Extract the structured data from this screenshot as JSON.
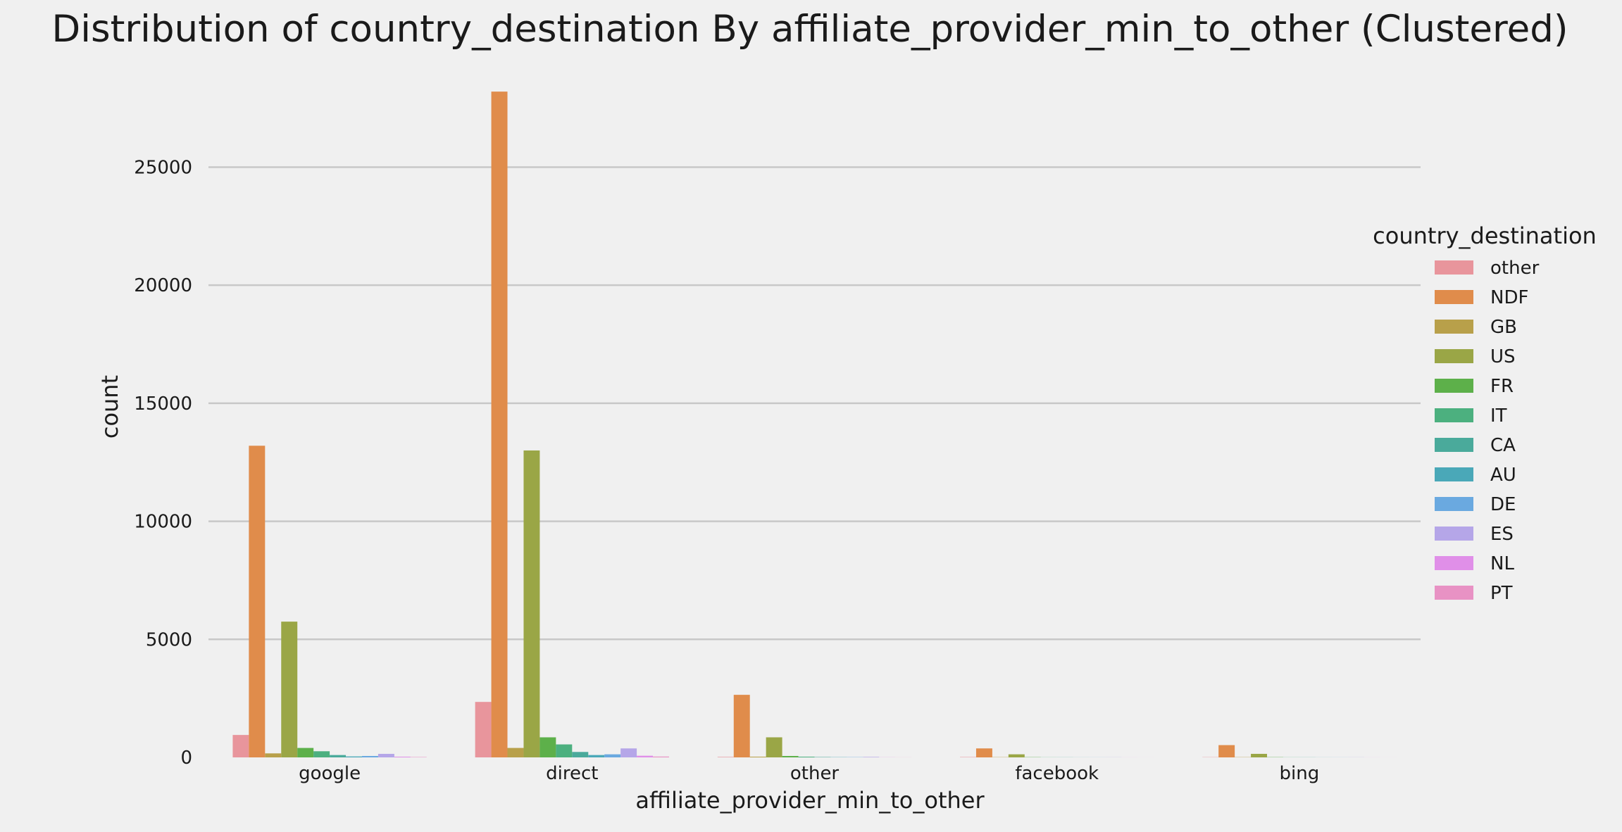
{
  "chart_data": {
    "type": "bar",
    "title": "Distribution of country_destination By affiliate_provider_min_to_other (Clustered)",
    "xlabel": "affiliate_provider_min_to_other",
    "ylabel": "count",
    "ylim": [
      0,
      28800
    ],
    "yticks": [
      "0",
      "5000",
      "10000",
      "15000",
      "20000",
      "25000"
    ],
    "ytick_values": [
      0,
      5000,
      10000,
      15000,
      20000,
      25000
    ],
    "grid": true,
    "legend_position": "right",
    "legend_title": "country_destination",
    "categories": [
      "google",
      "direct",
      "other",
      "facebook",
      "bing"
    ],
    "series": [
      {
        "name": "other",
        "color": "#e8959c",
        "values": [
          950,
          2350,
          20,
          15,
          10
        ]
      },
      {
        "name": "NDF",
        "color": "#e08c4b",
        "values": [
          13200,
          28200,
          2650,
          380,
          520
        ]
      },
      {
        "name": "GB",
        "color": "#b8a04a",
        "values": [
          170,
          400,
          30,
          10,
          10
        ]
      },
      {
        "name": "US",
        "color": "#9aa646",
        "values": [
          5750,
          13000,
          850,
          130,
          150
        ]
      },
      {
        "name": "FR",
        "color": "#5db04a",
        "values": [
          400,
          850,
          60,
          10,
          10
        ]
      },
      {
        "name": "IT",
        "color": "#4cb07f",
        "values": [
          260,
          550,
          30,
          5,
          5
        ]
      },
      {
        "name": "CA",
        "color": "#4aaa9b",
        "values": [
          100,
          230,
          15,
          5,
          5
        ]
      },
      {
        "name": "AU",
        "color": "#4aa8b8",
        "values": [
          40,
          100,
          10,
          3,
          3
        ]
      },
      {
        "name": "DE",
        "color": "#6aa9e0",
        "values": [
          60,
          130,
          10,
          3,
          3
        ]
      },
      {
        "name": "ES",
        "color": "#b5a6e8",
        "values": [
          150,
          380,
          20,
          5,
          5
        ]
      },
      {
        "name": "NL",
        "color": "#e08fe8",
        "values": [
          30,
          70,
          5,
          2,
          2
        ]
      },
      {
        "name": "PT",
        "color": "#e892c4",
        "values": [
          15,
          35,
          3,
          1,
          1
        ]
      }
    ]
  }
}
